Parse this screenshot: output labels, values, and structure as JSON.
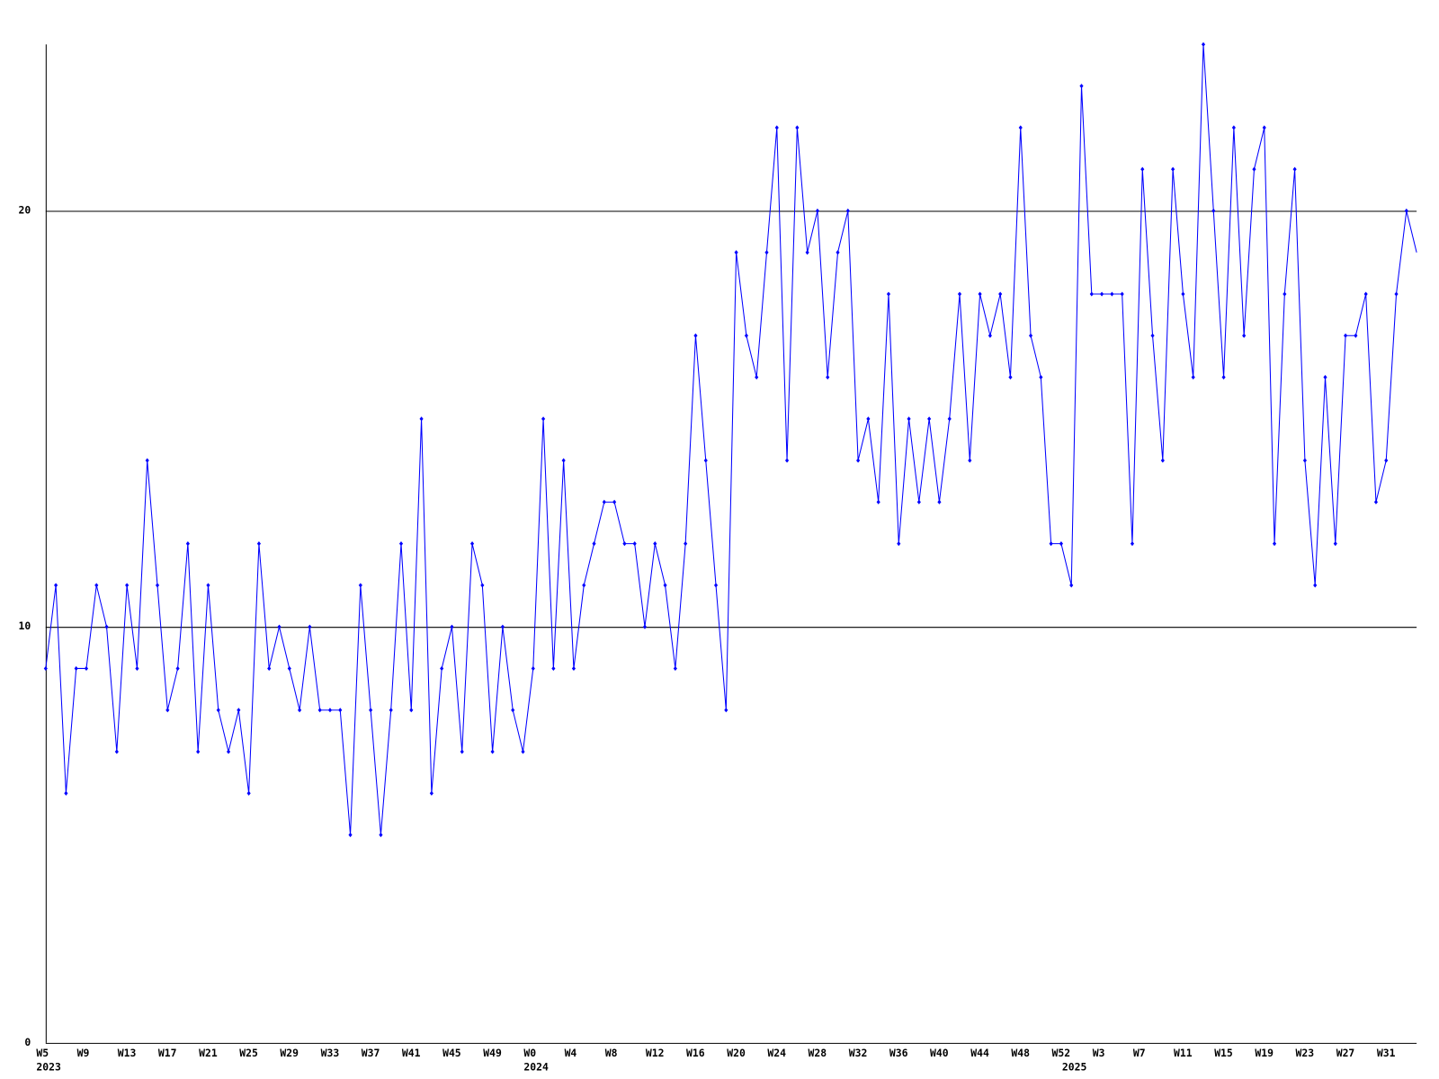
{
  "chart_data": {
    "type": "line",
    "categories": [
      "W5",
      null,
      null,
      null,
      "W9",
      null,
      null,
      null,
      "W13",
      null,
      null,
      null,
      "W17",
      null,
      null,
      null,
      "W21",
      null,
      null,
      null,
      "W25",
      null,
      null,
      null,
      "W29",
      null,
      null,
      null,
      "W33",
      null,
      null,
      null,
      "W37",
      null,
      null,
      null,
      "W41",
      null,
      null,
      null,
      "W45",
      null,
      null,
      null,
      "W49",
      null,
      null,
      null,
      "W0",
      null,
      null,
      null,
      "W4",
      null,
      null,
      null,
      "W8",
      null,
      null,
      null,
      "W12",
      null,
      null,
      null,
      "W16",
      null,
      null,
      null,
      "W20",
      null,
      null,
      null,
      "W24",
      null,
      null,
      null,
      "W28",
      null,
      null,
      null,
      "W32",
      null,
      null,
      null,
      "W36",
      null,
      null,
      null,
      "W40",
      null,
      null,
      null,
      "W44",
      null,
      null,
      null,
      "W48",
      null,
      null,
      null,
      "W52",
      null,
      null,
      null,
      "W3",
      null,
      null,
      null,
      "W7",
      null,
      null,
      null,
      "W11",
      null,
      null,
      null,
      "W15",
      null,
      null,
      null,
      "W19",
      null,
      null,
      null,
      "W23",
      null,
      null,
      null,
      "W27",
      null,
      null,
      null,
      "W31",
      null,
      null,
      null
    ],
    "year_labels": [
      "2023",
      null,
      null,
      null,
      null,
      null,
      null,
      null,
      null,
      null,
      null,
      null,
      null,
      null,
      null,
      null,
      null,
      null,
      null,
      null,
      null,
      null,
      null,
      null,
      null,
      null,
      null,
      null,
      null,
      null,
      null,
      null,
      null,
      null,
      null,
      null,
      null,
      null,
      null,
      null,
      null,
      null,
      null,
      null,
      null,
      null,
      null,
      null,
      "2024",
      null,
      null,
      null,
      null,
      null,
      null,
      null,
      null,
      null,
      null,
      null,
      null,
      null,
      null,
      null,
      null,
      null,
      null,
      null,
      null,
      null,
      null,
      null,
      null,
      null,
      null,
      null,
      null,
      null,
      null,
      null,
      null,
      null,
      null,
      null,
      null,
      null,
      null,
      null,
      null,
      null,
      null,
      null,
      null,
      null,
      null,
      null,
      null,
      null,
      null,
      null,
      null,
      "2025",
      null,
      null,
      null,
      null,
      null,
      null,
      null,
      null,
      null,
      null,
      null,
      null,
      null,
      null,
      null,
      null,
      null,
      null,
      null,
      null,
      null,
      null,
      null,
      null,
      null,
      null,
      null,
      null,
      null,
      null,
      null,
      null,
      null,
      null
    ],
    "series": [
      {
        "color": "#0000ff",
        "values": [
          9,
          11,
          6,
          9,
          9,
          11,
          10,
          7,
          11,
          9,
          14,
          11,
          8,
          9,
          12,
          7,
          11,
          8,
          7,
          8,
          6,
          12,
          9,
          10,
          9,
          8,
          10,
          8,
          8,
          8,
          5,
          11,
          8,
          5,
          8,
          12,
          8,
          15,
          6,
          9,
          10,
          7,
          12,
          11,
          7,
          10,
          8,
          7,
          9,
          15,
          9,
          14,
          9,
          11,
          12,
          13,
          13,
          12,
          12,
          10,
          12,
          11,
          9,
          12,
          17,
          14,
          11,
          8,
          19,
          17,
          16,
          19,
          22,
          14,
          22,
          19,
          20,
          16,
          19,
          20,
          14,
          15,
          13,
          18,
          12,
          15,
          13,
          15,
          13,
          15,
          18,
          14,
          18,
          17,
          18,
          16,
          22,
          17,
          16,
          12,
          12,
          11,
          23,
          18,
          18,
          18,
          18,
          12,
          21,
          17,
          14,
          21,
          18,
          16,
          24,
          20,
          16,
          22,
          17,
          21,
          22,
          12,
          18,
          21,
          14,
          11,
          16,
          12,
          17,
          17,
          18,
          13,
          14,
          18,
          20,
          19
        ]
      }
    ],
    "ylim": [
      0,
      24
    ],
    "yticks": [
      0,
      10,
      20
    ],
    "grid": true
  }
}
